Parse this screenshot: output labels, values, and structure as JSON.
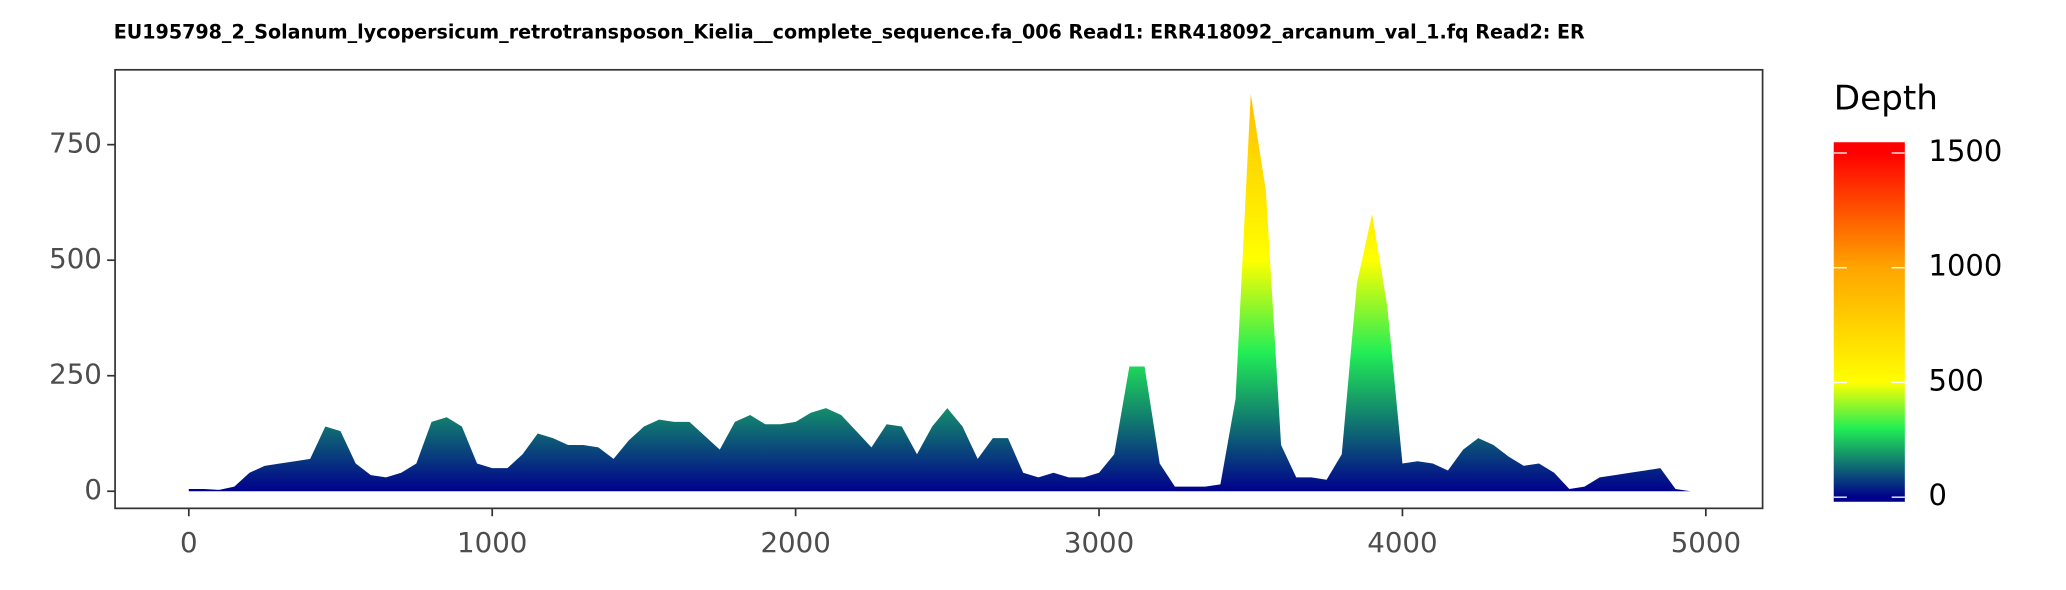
{
  "chart_data": {
    "type": "area",
    "title": "EU195798_2_Solanum_lycopersicum_retrotransposon_Kielia__complete_sequence.fa_006   Read1: ERR418092_arcanum_val_1.fq   Read2: ER",
    "legend_title": "Depth",
    "x": [
      0,
      50,
      100,
      150,
      200,
      250,
      300,
      350,
      400,
      450,
      500,
      550,
      600,
      650,
      700,
      750,
      800,
      850,
      900,
      950,
      1000,
      1050,
      1100,
      1150,
      1200,
      1250,
      1300,
      1350,
      1400,
      1450,
      1500,
      1550,
      1600,
      1650,
      1700,
      1750,
      1800,
      1850,
      1900,
      1950,
      2000,
      2050,
      2100,
      2150,
      2200,
      2250,
      2300,
      2350,
      2400,
      2450,
      2500,
      2550,
      2600,
      2650,
      2700,
      2750,
      2800,
      2850,
      2900,
      2950,
      3000,
      3050,
      3100,
      3150,
      3200,
      3250,
      3300,
      3350,
      3400,
      3450,
      3500,
      3550,
      3600,
      3650,
      3700,
      3750,
      3800,
      3850,
      3900,
      3950,
      4000,
      4050,
      4100,
      4150,
      4200,
      4250,
      4300,
      4350,
      4400,
      4450,
      4500,
      4550,
      4600,
      4650,
      4700,
      4750,
      4800,
      4850,
      4900,
      4950
    ],
    "values": [
      5,
      5,
      3,
      10,
      40,
      55,
      60,
      65,
      70,
      140,
      130,
      60,
      35,
      30,
      40,
      60,
      150,
      160,
      140,
      60,
      50,
      50,
      80,
      125,
      115,
      100,
      100,
      95,
      70,
      110,
      140,
      155,
      150,
      150,
      120,
      90,
      150,
      165,
      145,
      145,
      150,
      170,
      180,
      165,
      130,
      95,
      145,
      140,
      80,
      140,
      180,
      140,
      70,
      115,
      115,
      40,
      30,
      40,
      30,
      30,
      40,
      80,
      270,
      270,
      60,
      10,
      10,
      10,
      15,
      200,
      860,
      650,
      100,
      30,
      30,
      25,
      80,
      450,
      600,
      400,
      60,
      65,
      60,
      45,
      90,
      115,
      100,
      75,
      55,
      60,
      40,
      5,
      10,
      30,
      35,
      40,
      45,
      50,
      5,
      0
    ],
    "xlim": [
      -243,
      5187
    ],
    "ylim": [
      -37,
      912
    ],
    "xticks": [
      0,
      1000,
      2000,
      3000,
      4000,
      5000
    ],
    "yticks": [
      0,
      250,
      500,
      750
    ],
    "color_stops": [
      {
        "value": 0,
        "color": "#00008b"
      },
      {
        "value": 300,
        "color": "#22ee55"
      },
      {
        "value": 500,
        "color": "#ffff00"
      },
      {
        "value": 1000,
        "color": "#ffa500"
      },
      {
        "value": 1500,
        "color": "#ff0000"
      }
    ],
    "colorbar_lim": [
      -20,
      1547
    ],
    "colorbar_ticks": [
      0,
      500,
      1000,
      1500
    ]
  }
}
